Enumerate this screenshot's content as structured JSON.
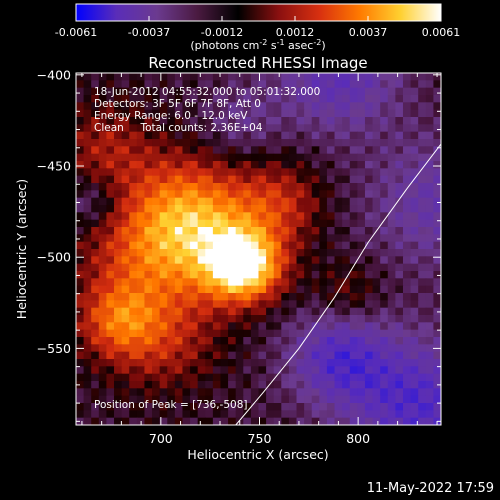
{
  "chart_data": {
    "type": "heatmap",
    "title": "Reconstructed RHESSI Image",
    "xlabel": "Heliocentric X (arcsec)",
    "ylabel": "Heliocentric Y (arcsec)",
    "xlim": [
      657,
      842
    ],
    "ylim": [
      -592,
      -399
    ],
    "xticks": [
      700,
      750,
      800
    ],
    "yticks": [
      -400,
      -450,
      -500,
      -550
    ],
    "colorbar": {
      "range": [
        -0.0061,
        0.0061
      ],
      "ticks": [
        "-0.0061",
        "-0.0037",
        "-0.0012",
        "0.0012",
        "0.0037",
        "0.0061"
      ],
      "unit_parts": [
        "(photons cm",
        "-2",
        " s",
        "-1",
        " asec",
        "-2",
        ")"
      ],
      "colors": [
        "#0000ff",
        "#5a2db8",
        "#6b3a8f",
        "#4a1a40",
        "#000000",
        "#8a1010",
        "#d83010",
        "#ff7a00",
        "#ffd030",
        "#ffffff"
      ]
    },
    "annotation_lines": [
      "18-Jun-2012 04:55:32.000 to 05:01:32.000",
      "Detectors: 3F 5F 6F 7F 8F, Att 0",
      "Energy Range: 6.0 - 12.0 keV",
      "Clean     Total counts: 2.36E+04"
    ],
    "peak_label": "Position of Peak = [736,-508]",
    "peak": [
      736,
      -508
    ],
    "limb_curve": [
      [
        842,
        -438
      ],
      [
        825,
        -462
      ],
      [
        805,
        -492
      ],
      [
        788,
        -522
      ],
      [
        770,
        -550
      ],
      [
        752,
        -574
      ],
      [
        738,
        -592
      ]
    ]
  },
  "footer": {
    "date": "11-May-2022 17:59"
  }
}
